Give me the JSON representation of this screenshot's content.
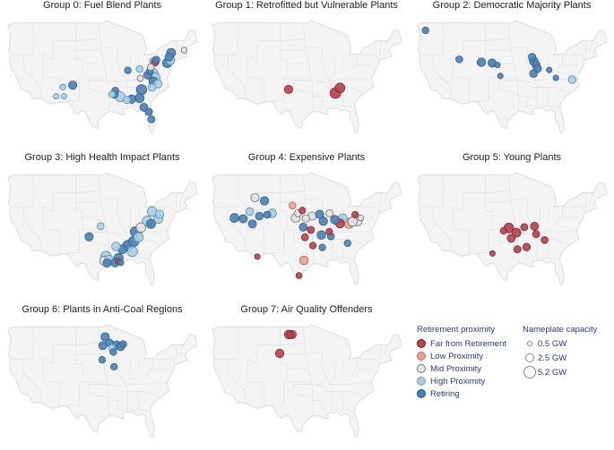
{
  "legend": {
    "proximity_title": "Retirement proximity",
    "capacity_title": "Nameplate capacity",
    "categories": [
      {
        "label": "Far from Retirement",
        "color": "#b5454f"
      },
      {
        "label": "Low Proximity",
        "color": "#e6a48e"
      },
      {
        "label": "Mid Proximity",
        "color": "#e3e3e3"
      },
      {
        "label": "High Proximity",
        "color": "#a9cde4"
      },
      {
        "label": "Retiring",
        "color": "#4f82b3"
      }
    ],
    "sizes": [
      {
        "label": "0.5 GW",
        "gw": 0.5
      },
      {
        "label": "2.5 GW",
        "gw": 2.5
      },
      {
        "label": "5.2 GW",
        "gw": 5.2
      }
    ]
  },
  "chart_data": [
    {
      "type": "scatter",
      "title": "Group 0: Fuel Blend Plants",
      "points": [
        {
          "lon": -75.0,
          "lat": 42.4,
          "cat": 4,
          "gw": 2.0
        },
        {
          "lon": -75.6,
          "lat": 41.5,
          "cat": 4,
          "gw": 1.5
        },
        {
          "lon": -75.2,
          "lat": 40.8,
          "cat": 3,
          "gw": 1.8
        },
        {
          "lon": -76.2,
          "lat": 40.2,
          "cat": 4,
          "gw": 2.2
        },
        {
          "lon": -71.0,
          "lat": 43.0,
          "cat": 2,
          "gw": 0.5
        },
        {
          "lon": -79.9,
          "lat": 40.4,
          "cat": 0,
          "gw": 1.2
        },
        {
          "lon": -79.5,
          "lat": 40.9,
          "cat": 4,
          "gw": 1.0
        },
        {
          "lon": -80.4,
          "lat": 40.6,
          "cat": 3,
          "gw": 1.3
        },
        {
          "lon": -81.2,
          "lat": 39.3,
          "cat": 2,
          "gw": 0.8
        },
        {
          "lon": -81.5,
          "lat": 38.4,
          "cat": 4,
          "gw": 1.0
        },
        {
          "lon": -80.6,
          "lat": 37.9,
          "cat": 3,
          "gw": 3.4
        },
        {
          "lon": -79.8,
          "lat": 37.0,
          "cat": 3,
          "gw": 2.6
        },
        {
          "lon": -80.4,
          "lat": 36.2,
          "cat": 4,
          "gw": 2.0
        },
        {
          "lon": -79.0,
          "lat": 35.7,
          "cat": 3,
          "gw": 1.5
        },
        {
          "lon": -80.8,
          "lat": 34.9,
          "cat": 3,
          "gw": 1.2
        },
        {
          "lon": -82.1,
          "lat": 37.6,
          "cat": 4,
          "gw": 1.5
        },
        {
          "lon": -84.6,
          "lat": 38.9,
          "cat": 3,
          "gw": 0.9
        },
        {
          "lon": -84.4,
          "lat": 36.9,
          "cat": 2,
          "gw": 0.6
        },
        {
          "lon": -84.0,
          "lat": 34.4,
          "cat": 4,
          "gw": 3.0
        },
        {
          "lon": -84.6,
          "lat": 32.6,
          "cat": 4,
          "gw": 2.0
        },
        {
          "lon": -87.0,
          "lat": 32.4,
          "cat": 4,
          "gw": 1.7
        },
        {
          "lon": -88.5,
          "lat": 32.2,
          "cat": 3,
          "gw": 1.0
        },
        {
          "lon": -90.5,
          "lat": 32.9,
          "cat": 3,
          "gw": 2.8
        },
        {
          "lon": -92.3,
          "lat": 33.4,
          "cat": 4,
          "gw": 1.2
        },
        {
          "lon": -93.0,
          "lat": 33.4,
          "cat": 3,
          "gw": 0.8
        },
        {
          "lon": -92.0,
          "lat": 34.2,
          "cat": 4,
          "gw": 0.9
        },
        {
          "lon": -88.2,
          "lat": 38.6,
          "cat": 4,
          "gw": 0.8
        },
        {
          "lon": -83.3,
          "lat": 30.6,
          "cat": 4,
          "gw": 1.4
        },
        {
          "lon": -81.8,
          "lat": 29.6,
          "cat": 4,
          "gw": 1.1
        },
        {
          "lon": -81.0,
          "lat": 28.0,
          "cat": 4,
          "gw": 0.9
        },
        {
          "lon": -105.0,
          "lat": 35.4,
          "cat": 4,
          "gw": 1.6
        },
        {
          "lon": -108.0,
          "lat": 35.0,
          "cat": 3,
          "gw": 0.5
        },
        {
          "lon": -107.6,
          "lat": 33.0,
          "cat": 3,
          "gw": 0.4
        },
        {
          "lon": -110.0,
          "lat": 33.0,
          "cat": 3,
          "gw": 0.4
        }
      ]
    },
    {
      "type": "scatter",
      "title": "Group 1: Retrofitted but Vulnerable Plants",
      "points": [
        {
          "lon": -101.5,
          "lat": 34.5,
          "cat": 0,
          "gw": 1.6
        },
        {
          "lon": -85.8,
          "lat": 34.8,
          "cat": 0,
          "gw": 2.6
        },
        {
          "lon": -87.2,
          "lat": 33.7,
          "cat": 0,
          "gw": 3.4
        }
      ]
    },
    {
      "type": "scatter",
      "title": "Group 2: Democratic Majority Plants",
      "points": [
        {
          "lon": -122.3,
          "lat": 47.3,
          "cat": 4,
          "gw": 0.8
        },
        {
          "lon": -112.0,
          "lat": 41.0,
          "cat": 4,
          "gw": 0.9
        },
        {
          "lon": -105.3,
          "lat": 40.4,
          "cat": 4,
          "gw": 1.7
        },
        {
          "lon": -102.0,
          "lat": 40.2,
          "cat": 4,
          "gw": 1.5
        },
        {
          "lon": -100.4,
          "lat": 39.8,
          "cat": 4,
          "gw": 0.4
        },
        {
          "lon": -99.5,
          "lat": 37.4,
          "cat": 4,
          "gw": 0.4
        },
        {
          "lon": -89.8,
          "lat": 41.5,
          "cat": 4,
          "gw": 1.2
        },
        {
          "lon": -89.3,
          "lat": 40.6,
          "cat": 4,
          "gw": 1.8
        },
        {
          "lon": -88.6,
          "lat": 39.8,
          "cat": 4,
          "gw": 1.4
        },
        {
          "lon": -88.2,
          "lat": 39.0,
          "cat": 4,
          "gw": 1.4
        },
        {
          "lon": -89.4,
          "lat": 37.9,
          "cat": 4,
          "gw": 1.3
        },
        {
          "lon": -84.6,
          "lat": 38.7,
          "cat": 4,
          "gw": 0.4
        },
        {
          "lon": -82.6,
          "lat": 37.0,
          "cat": 4,
          "gw": 0.4
        },
        {
          "lon": -77.6,
          "lat": 36.6,
          "cat": 3,
          "gw": 1.3
        }
      ]
    },
    {
      "type": "scatter",
      "title": "Group 3: High Health Impact Plants",
      "points": [
        {
          "lon": -80.8,
          "lat": 41.0,
          "cat": 3,
          "gw": 2.4
        },
        {
          "lon": -78.5,
          "lat": 40.4,
          "cat": 3,
          "gw": 1.6
        },
        {
          "lon": -78.9,
          "lat": 39.4,
          "cat": 3,
          "gw": 2.1
        },
        {
          "lon": -81.1,
          "lat": 38.3,
          "cat": 4,
          "gw": 2.0
        },
        {
          "lon": -82.3,
          "lat": 38.9,
          "cat": 3,
          "gw": 2.8
        },
        {
          "lon": -84.2,
          "lat": 37.5,
          "cat": 2,
          "gw": 2.4
        },
        {
          "lon": -85.9,
          "lat": 36.6,
          "cat": 4,
          "gw": 2.8
        },
        {
          "lon": -84.9,
          "lat": 35.4,
          "cat": 3,
          "gw": 2.3
        },
        {
          "lon": -86.4,
          "lat": 34.5,
          "cat": 4,
          "gw": 3.0
        },
        {
          "lon": -88.1,
          "lat": 33.6,
          "cat": 4,
          "gw": 3.2
        },
        {
          "lon": -86.8,
          "lat": 32.3,
          "cat": 3,
          "gw": 2.8
        },
        {
          "lon": -89.8,
          "lat": 32.8,
          "cat": 4,
          "gw": 2.0
        },
        {
          "lon": -91.8,
          "lat": 33.4,
          "cat": 3,
          "gw": 1.8
        },
        {
          "lon": -91.0,
          "lat": 30.9,
          "cat": 4,
          "gw": 2.2
        },
        {
          "lon": -93.9,
          "lat": 30.5,
          "cat": 3,
          "gw": 2.2
        },
        {
          "lon": -94.8,
          "lat": 31.2,
          "cat": 3,
          "gw": 3.3
        },
        {
          "lon": -95.3,
          "lat": 30.3,
          "cat": 2,
          "gw": 2.4
        },
        {
          "lon": -94.5,
          "lat": 29.8,
          "cat": 4,
          "gw": 1.6
        },
        {
          "lon": -92.0,
          "lat": 29.9,
          "cat": 4,
          "gw": 1.8
        },
        {
          "lon": -91.2,
          "lat": 30.2,
          "cat": 0,
          "gw": 0.4
        },
        {
          "lon": -90.3,
          "lat": 29.9,
          "cat": 4,
          "gw": 0.4
        },
        {
          "lon": -100.0,
          "lat": 35.5,
          "cat": 4,
          "gw": 1.6
        },
        {
          "lon": -96.5,
          "lat": 37.8,
          "cat": 3,
          "gw": 1.0
        }
      ]
    },
    {
      "type": "scatter",
      "title": "Group 4: Expensive Plants",
      "points": [
        {
          "lon": -111.7,
          "lat": 44.0,
          "cat": 2,
          "gw": 1.6
        },
        {
          "lon": -108.8,
          "lat": 43.3,
          "cat": 4,
          "gw": 1.7
        },
        {
          "lon": -113.3,
          "lat": 41.0,
          "cat": 3,
          "gw": 1.3
        },
        {
          "lon": -110.4,
          "lat": 40.0,
          "cat": 4,
          "gw": 1.3
        },
        {
          "lon": -108.0,
          "lat": 40.3,
          "cat": 4,
          "gw": 1.0
        },
        {
          "lon": -106.5,
          "lat": 40.6,
          "cat": 3,
          "gw": 1.8
        },
        {
          "lon": -118.0,
          "lat": 39.6,
          "cat": 4,
          "gw": 1.9
        },
        {
          "lon": -115.3,
          "lat": 39.4,
          "cat": 4,
          "gw": 1.6
        },
        {
          "lon": -112.5,
          "lat": 38.3,
          "cat": 4,
          "gw": 1.5
        },
        {
          "lon": -100.3,
          "lat": 42.3,
          "cat": 1,
          "gw": 0.9
        },
        {
          "lon": -97.3,
          "lat": 41.2,
          "cat": 0,
          "gw": 0.8
        },
        {
          "lon": -98.6,
          "lat": 40.6,
          "cat": 2,
          "gw": 1.0
        },
        {
          "lon": -99.3,
          "lat": 39.6,
          "cat": 2,
          "gw": 2.0
        },
        {
          "lon": -96.2,
          "lat": 39.5,
          "cat": 2,
          "gw": 1.1
        },
        {
          "lon": -94.3,
          "lat": 40.0,
          "cat": 2,
          "gw": 1.6
        },
        {
          "lon": -92.0,
          "lat": 40.4,
          "cat": 4,
          "gw": 1.6
        },
        {
          "lon": -89.0,
          "lat": 40.6,
          "cat": 2,
          "gw": 1.0
        },
        {
          "lon": -87.4,
          "lat": 39.2,
          "cat": 4,
          "gw": 1.8
        },
        {
          "lon": -85.0,
          "lat": 39.5,
          "cat": 3,
          "gw": 2.1
        },
        {
          "lon": -85.8,
          "lat": 38.4,
          "cat": 0,
          "gw": 2.0
        },
        {
          "lon": -83.0,
          "lat": 38.4,
          "cat": 1,
          "gw": 2.6
        },
        {
          "lon": -82.0,
          "lat": 38.8,
          "cat": 2,
          "gw": 2.2
        },
        {
          "lon": -80.6,
          "lat": 39.0,
          "cat": 2,
          "gw": 2.9
        },
        {
          "lon": -81.2,
          "lat": 40.3,
          "cat": 0,
          "gw": 0.8
        },
        {
          "lon": -79.5,
          "lat": 39.6,
          "cat": 2,
          "gw": 0.5
        },
        {
          "lon": -97.0,
          "lat": 37.6,
          "cat": 4,
          "gw": 1.4
        },
        {
          "lon": -94.7,
          "lat": 37.0,
          "cat": 0,
          "gw": 1.0
        },
        {
          "lon": -96.5,
          "lat": 35.4,
          "cat": 0,
          "gw": 0.9
        },
        {
          "lon": -91.5,
          "lat": 35.9,
          "cat": 4,
          "gw": 1.8
        },
        {
          "lon": -90.9,
          "lat": 38.9,
          "cat": 4,
          "gw": 1.7
        },
        {
          "lon": -89.1,
          "lat": 36.6,
          "cat": 0,
          "gw": 0.8
        },
        {
          "lon": -88.6,
          "lat": 35.6,
          "cat": 4,
          "gw": 0.9
        },
        {
          "lon": -94.1,
          "lat": 33.6,
          "cat": 0,
          "gw": 0.8
        },
        {
          "lon": -91.2,
          "lat": 33.2,
          "cat": 4,
          "gw": 0.8
        },
        {
          "lon": -83.5,
          "lat": 34.1,
          "cat": 4,
          "gw": 0.8
        },
        {
          "lon": -96.8,
          "lat": 30.4,
          "cat": 1,
          "gw": 1.8
        },
        {
          "lon": -98.3,
          "lat": 27.1,
          "cat": 0,
          "gw": 0.5
        },
        {
          "lon": -111.0,
          "lat": 31.2,
          "cat": 0,
          "gw": 0.4
        }
      ]
    },
    {
      "type": "scatter",
      "title": "Group 5: Young Plants",
      "points": [
        {
          "lon": -96.9,
          "lat": 37.4,
          "cat": 0,
          "gw": 2.6
        },
        {
          "lon": -94.6,
          "lat": 36.4,
          "cat": 0,
          "gw": 2.0
        },
        {
          "lon": -98.5,
          "lat": 36.8,
          "cat": 0,
          "gw": 0.8
        },
        {
          "lon": -96.2,
          "lat": 35.2,
          "cat": 0,
          "gw": 1.4
        },
        {
          "lon": -92.2,
          "lat": 37.6,
          "cat": 0,
          "gw": 1.0
        },
        {
          "lon": -89.1,
          "lat": 37.8,
          "cat": 0,
          "gw": 1.4
        },
        {
          "lon": -88.6,
          "lat": 36.1,
          "cat": 0,
          "gw": 1.0
        },
        {
          "lon": -91.5,
          "lat": 33.3,
          "cat": 0,
          "gw": 1.2
        },
        {
          "lon": -94.3,
          "lat": 32.8,
          "cat": 0,
          "gw": 1.0
        },
        {
          "lon": -86.0,
          "lat": 34.8,
          "cat": 0,
          "gw": 0.9
        },
        {
          "lon": -101.9,
          "lat": 31.9,
          "cat": 0,
          "gw": 0.4
        }
      ]
    },
    {
      "type": "scatter",
      "title": "Group 6: Plants in Anti-Coal Regions",
      "points": [
        {
          "lon": -95.1,
          "lat": 46.8,
          "cat": 4,
          "gw": 1.6
        },
        {
          "lon": -95.8,
          "lat": 44.9,
          "cat": 4,
          "gw": 1.4
        },
        {
          "lon": -93.8,
          "lat": 45.5,
          "cat": 4,
          "gw": 1.3
        },
        {
          "lon": -93.1,
          "lat": 44.4,
          "cat": 3,
          "gw": 0.8
        },
        {
          "lon": -91.6,
          "lat": 45.0,
          "cat": 4,
          "gw": 1.7
        },
        {
          "lon": -90.4,
          "lat": 44.7,
          "cat": 4,
          "gw": 1.6
        },
        {
          "lon": -89.6,
          "lat": 45.2,
          "cat": 4,
          "gw": 0.9
        },
        {
          "lon": -92.6,
          "lat": 43.5,
          "cat": 4,
          "gw": 0.8
        },
        {
          "lon": -96.0,
          "lat": 41.8,
          "cat": 4,
          "gw": 0.8
        },
        {
          "lon": -92.4,
          "lat": 40.3,
          "cat": 4,
          "gw": 0.8
        }
      ]
    },
    {
      "type": "scatter",
      "title": "Group 7: Air Quality Offenders",
      "points": [
        {
          "lon": -101.4,
          "lat": 47.3,
          "cat": 0,
          "gw": 1.8
        },
        {
          "lon": -100.4,
          "lat": 47.3,
          "cat": 0,
          "gw": 1.6
        },
        {
          "lon": -101.0,
          "lat": 47.2,
          "cat": 0,
          "gw": 0.8
        },
        {
          "lon": -104.2,
          "lat": 43.2,
          "cat": 0,
          "gw": 1.7
        }
      ]
    }
  ]
}
